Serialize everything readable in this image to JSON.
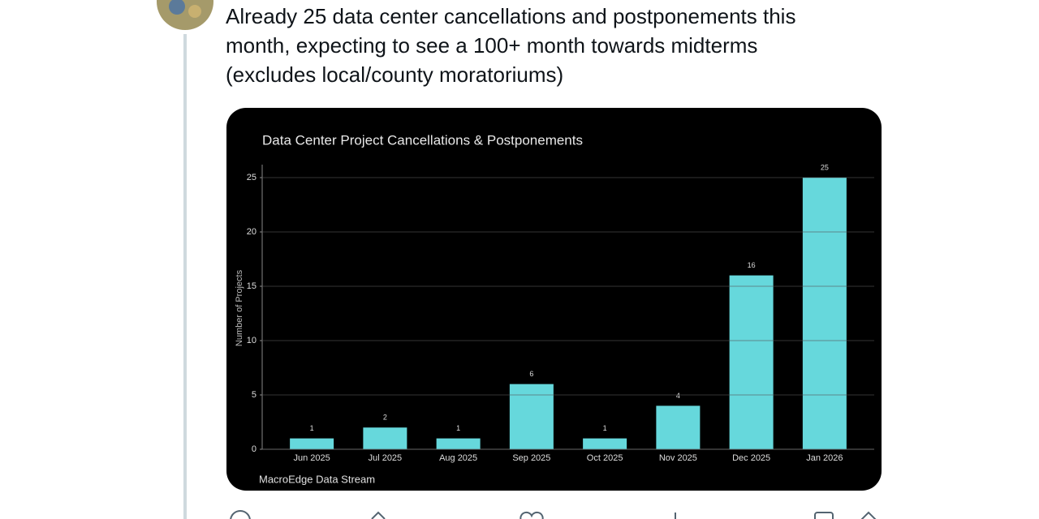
{
  "tweet": {
    "text_lines": [
      "Already 25 data center cancellations and postponements this",
      "month, expecting to see a 100+ month towards midterms",
      "(excludes local/county moratoriums)"
    ]
  },
  "chart_data": {
    "type": "bar",
    "title": "Data Center Project Cancellations & Postponements",
    "y_label": "Number of Projects",
    "source": "MacroEdge Data Stream",
    "categories": [
      "Jun 2025",
      "Jul 2025",
      "Aug 2025",
      "Sep 2025",
      "Oct 2025",
      "Nov 2025",
      "Dec 2025",
      "Jan 2026"
    ],
    "values": [
      1,
      2,
      1,
      6,
      1,
      4,
      16,
      25
    ],
    "color": "#66d8dc",
    "ylim": [
      0,
      26
    ],
    "yticks": [
      0,
      5,
      10,
      15,
      20,
      25
    ],
    "grid": true
  }
}
